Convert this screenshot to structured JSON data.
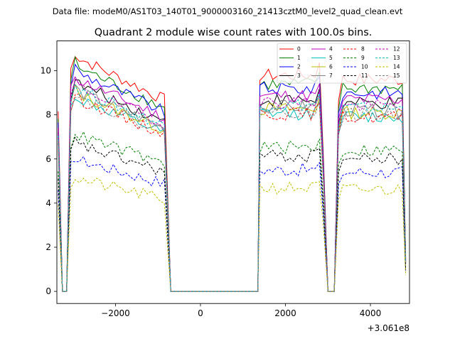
{
  "chart_data": {
    "type": "line",
    "suptitle": "Data file: modeM0/AS1T03_140T01_9000003160_21413cztM0_level2_quad_clean.evt",
    "title": "Quadrant 2 module wise count rates with 100.0s bins.",
    "xlabel": "",
    "ylabel": "",
    "offset_label": "+3.061e8",
    "xlim": [
      -3380,
      4920
    ],
    "ylim": [
      -0.55,
      11.35
    ],
    "xticks": [
      -2000,
      0,
      2000,
      4000
    ],
    "xtick_labels": [
      "−2000",
      "0",
      "2000",
      "4000"
    ],
    "yticks": [
      0,
      2,
      4,
      6,
      8,
      10
    ],
    "ytick_labels": [
      "0",
      "2",
      "4",
      "6",
      "8",
      "10"
    ],
    "grid": false,
    "legend_position": "top-right",
    "time_segments": [
      {
        "start": -3350,
        "end": -700,
        "gap_after": -3150
      },
      {
        "start": 1350,
        "end": 2950
      },
      {
        "start": 3300,
        "end": 4800
      }
    ],
    "series": [
      {
        "name": "0",
        "color": "#ff0000",
        "dash": false,
        "level": 9.6
      },
      {
        "name": "1",
        "color": "#008000",
        "dash": false,
        "level": 9.2
      },
      {
        "name": "2",
        "color": "#0000ff",
        "dash": false,
        "level": 9.0
      },
      {
        "name": "3",
        "color": "#000000",
        "dash": false,
        "level": 8.5
      },
      {
        "name": "4",
        "color": "#bf00bf",
        "dash": false,
        "level": 8.7
      },
      {
        "name": "5",
        "color": "#00bfbf",
        "dash": false,
        "level": 7.9
      },
      {
        "name": "6",
        "color": "#bfbf00",
        "dash": false,
        "level": 8.1
      },
      {
        "name": "7",
        "color": "#808080",
        "dash": false,
        "level": 8.2
      },
      {
        "name": "8",
        "color": "#ff0000",
        "dash": true,
        "level": 7.9
      },
      {
        "name": "9",
        "color": "#008000",
        "dash": true,
        "level": 6.4
      },
      {
        "name": "10",
        "color": "#0000ff",
        "dash": true,
        "level": 5.4
      },
      {
        "name": "11",
        "color": "#000000",
        "dash": true,
        "level": 6.0
      },
      {
        "name": "12",
        "color": "#bf00bf",
        "dash": true,
        "level": 8.4
      },
      {
        "name": "13",
        "color": "#00bfbf",
        "dash": true,
        "level": 8.3
      },
      {
        "name": "14",
        "color": "#bfbf00",
        "dash": true,
        "level": 4.6
      },
      {
        "name": "15",
        "color": "#808080",
        "dash": true,
        "level": 8.0
      }
    ]
  }
}
